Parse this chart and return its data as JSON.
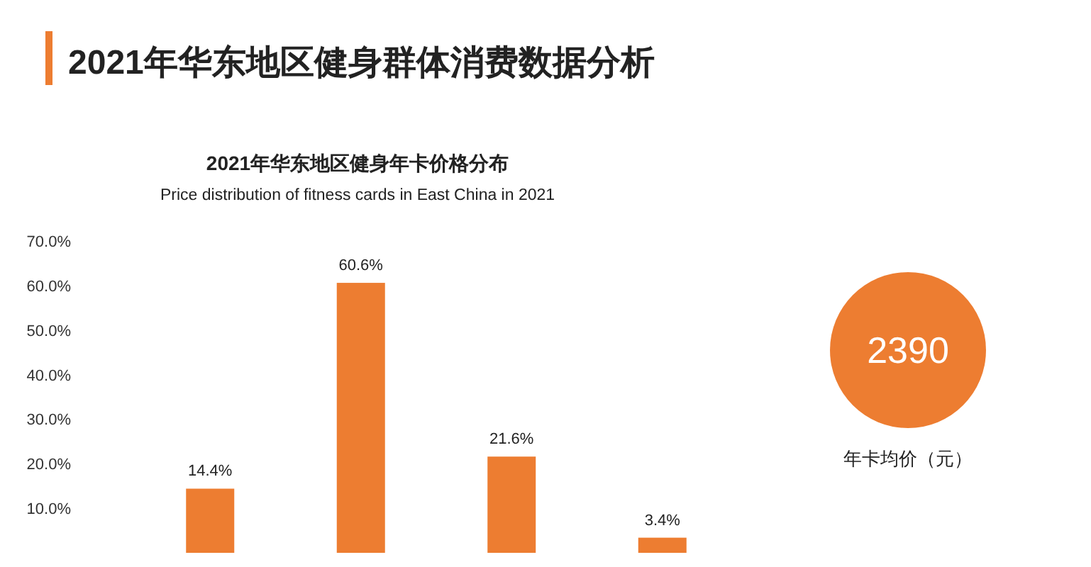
{
  "chart_data": [
    {
      "type": "bar",
      "title": "2021年华东地区健身年卡价格分布",
      "subtitle": "Price distribution of fitness cards in East China in 2021",
      "annotations": [
        "2021年华东地区健身群体消费数据分析"
      ],
      "categories": [
        null,
        null,
        null,
        null
      ],
      "values": [
        14.4,
        60.6,
        21.6,
        3.4
      ],
      "value_labels": [
        "14.4%",
        "60.6%",
        "21.6%",
        "3.4%"
      ],
      "color": "#ed7d31",
      "ylim": [
        0,
        70
      ],
      "yticks": [
        {
          "value": 10,
          "label": "10.0%"
        },
        {
          "value": 20,
          "label": "20.0%"
        },
        {
          "value": 30,
          "label": "30.0%"
        },
        {
          "value": 40,
          "label": "40.0%"
        },
        {
          "value": 50,
          "label": "50.0%"
        },
        {
          "value": 60,
          "label": "60.0%"
        },
        {
          "value": 70,
          "label": "70.0%"
        }
      ],
      "grid": false
    },
    {
      "type": "other",
      "annotations": [
        "2390",
        "年卡均价（元）"
      ],
      "color": "#ed7d31"
    }
  ]
}
